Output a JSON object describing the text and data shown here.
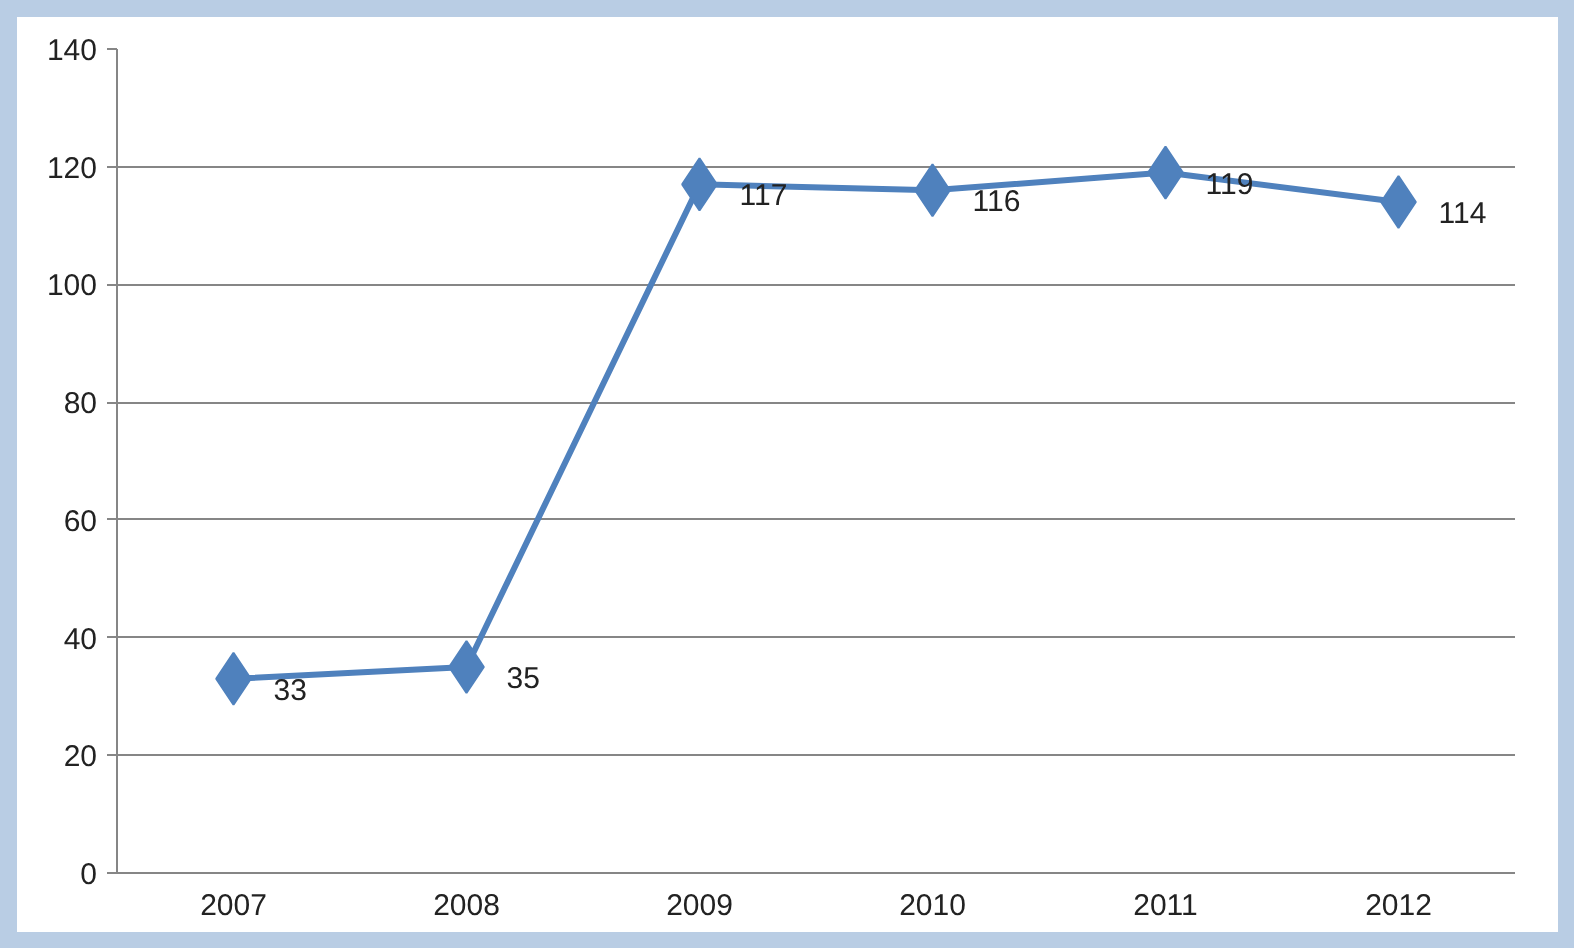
{
  "chart_data": {
    "type": "line",
    "categories": [
      "2007",
      "2008",
      "2009",
      "2010",
      "2011",
      "2012"
    ],
    "series": [
      {
        "color": "#4f81bd",
        "values": [
          33,
          35,
          117,
          116,
          119,
          114
        ]
      }
    ],
    "ylim": [
      0,
      140
    ],
    "yticks": [
      0,
      20,
      40,
      60,
      80,
      100,
      120,
      140
    ],
    "grid": "y",
    "marker": "diamond",
    "line_style": "solid",
    "data_labels": true
  }
}
